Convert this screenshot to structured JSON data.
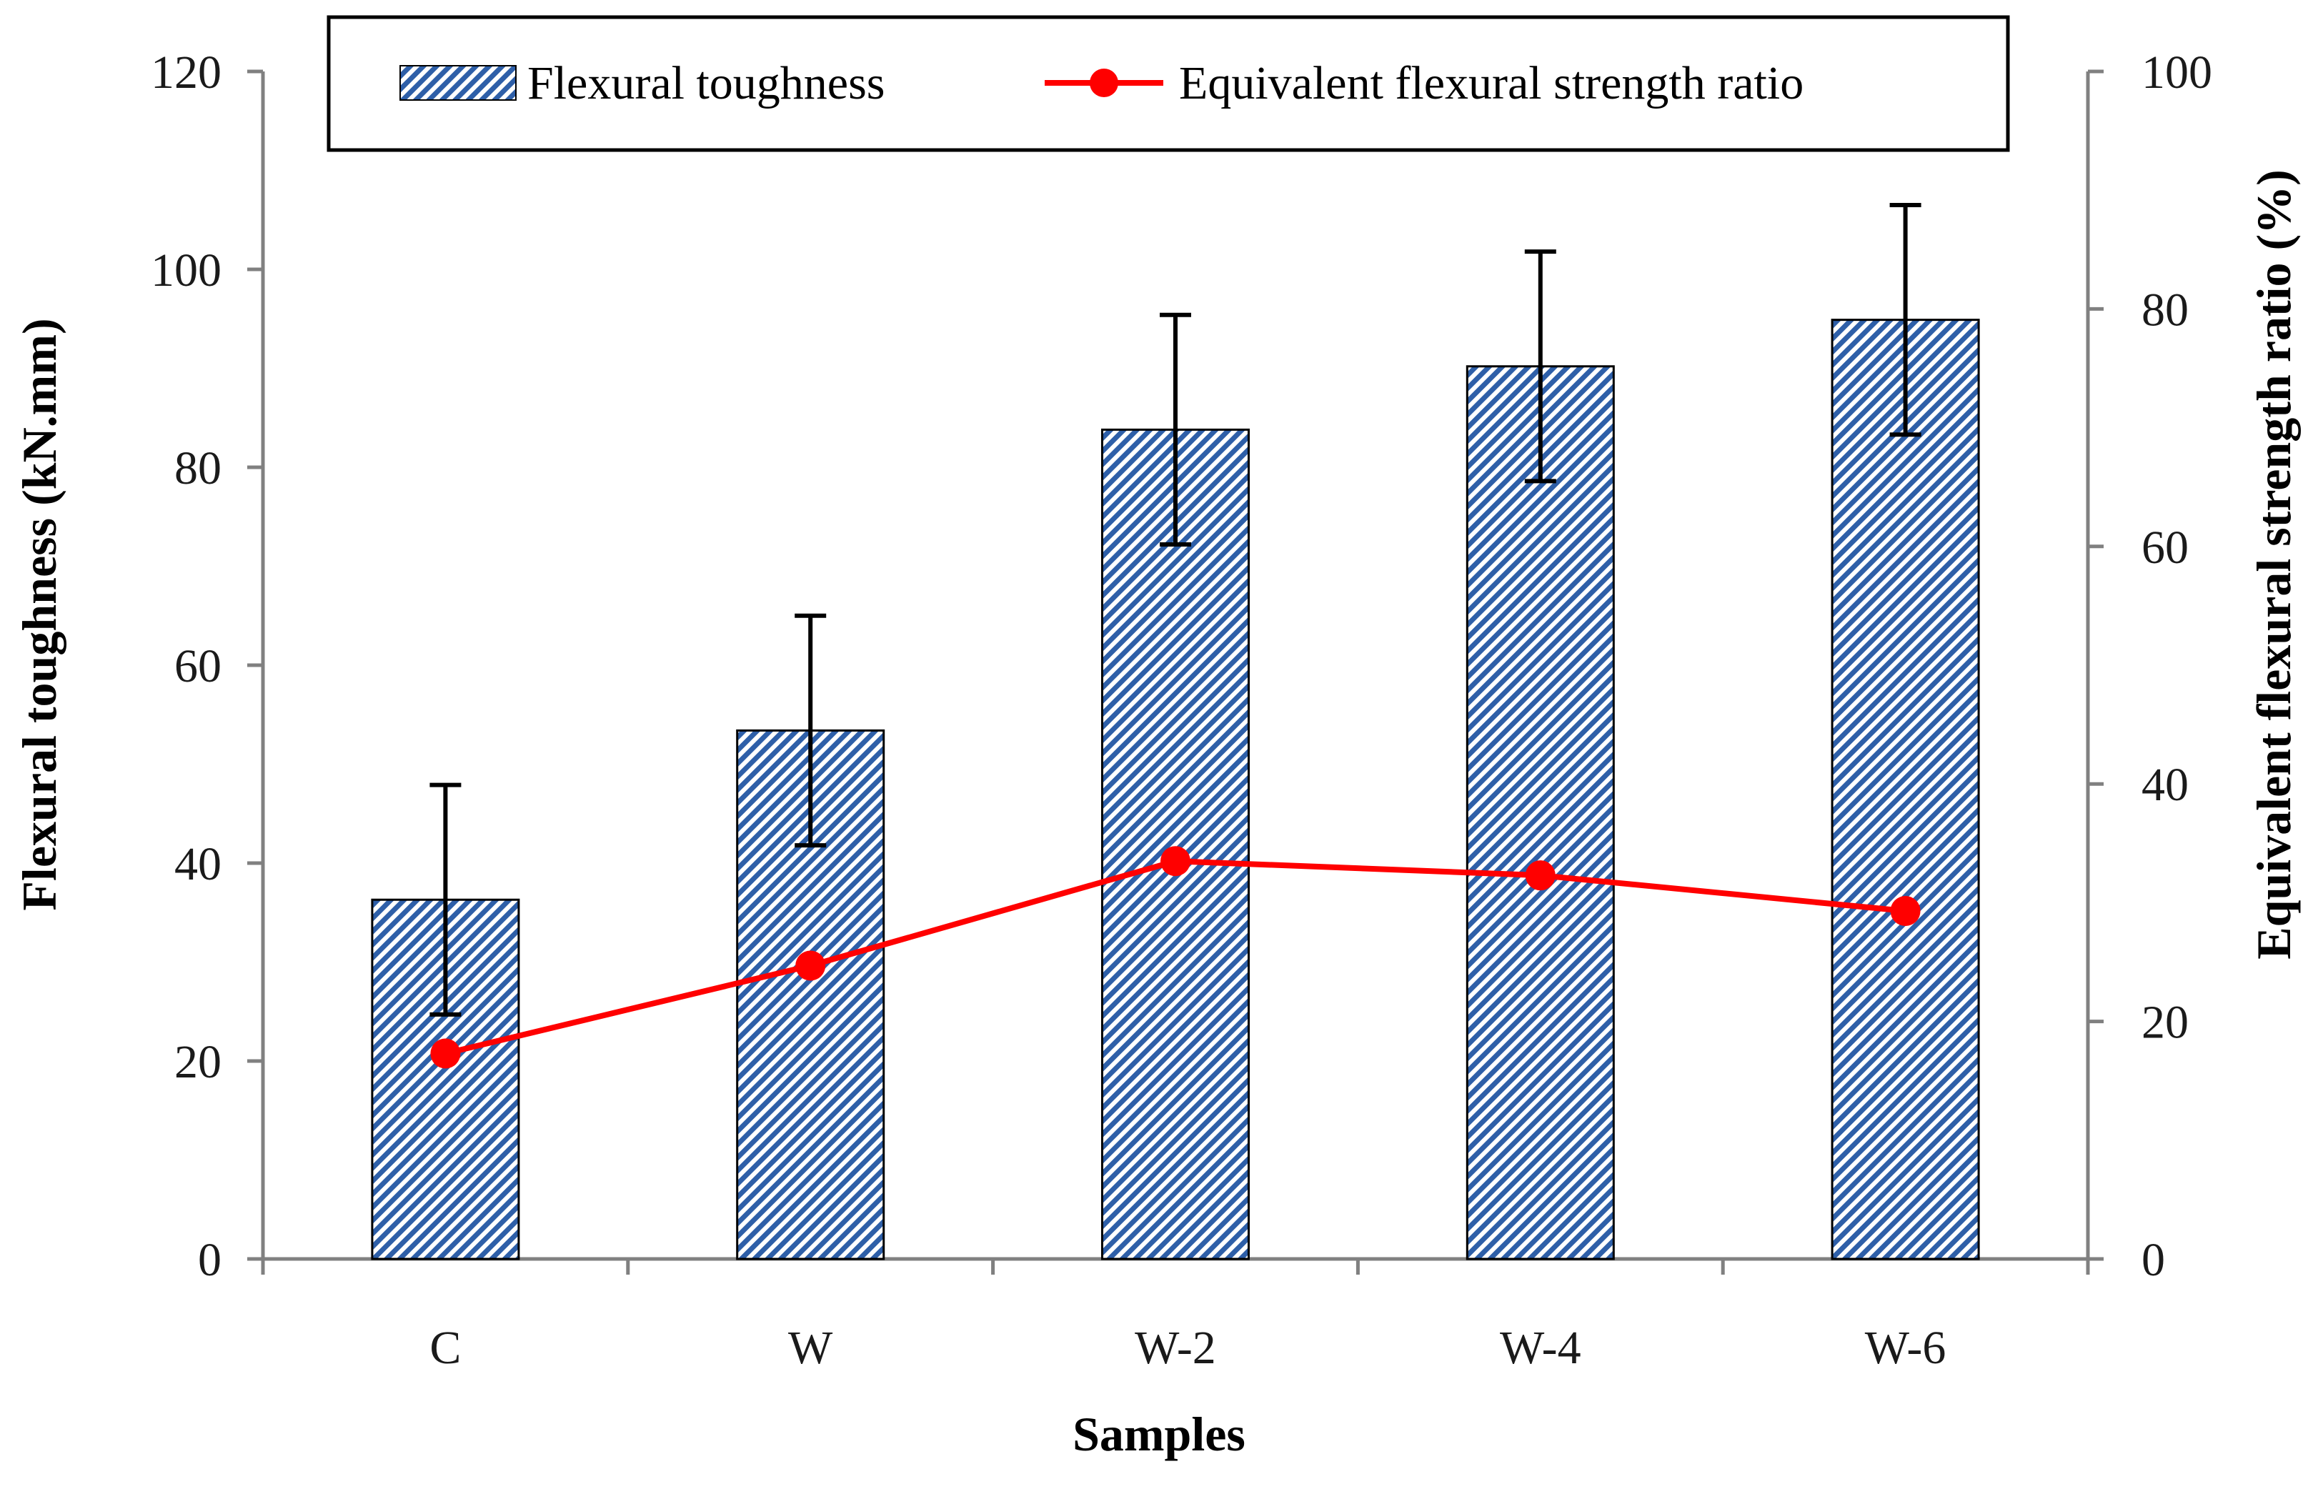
{
  "chart_data": {
    "type": "bar",
    "categories": [
      "C",
      "W",
      "W-2",
      "W-4",
      "W-6"
    ],
    "series": [
      {
        "name": "Flexural toughness",
        "kind": "bar",
        "axis": "left",
        "values": [
          36.3,
          53.4,
          83.8,
          90.2,
          94.9
        ],
        "errors": [
          11.6,
          11.6,
          11.6,
          11.6,
          11.6
        ],
        "color": "#2e5fa8"
      },
      {
        "name": "Equivalent flexural strength ratio",
        "kind": "line",
        "axis": "right",
        "values": [
          17.3,
          24.7,
          33.5,
          32.3,
          29.3
        ],
        "color": "#ff0000"
      }
    ],
    "xlabel": "Samples",
    "ylabel": "Flexural toughness  (kN.mm)",
    "y2label": "Equivalent flexural strength ratio (%)",
    "ylim": [
      0,
      120
    ],
    "y2lim": [
      0,
      100
    ],
    "yticks": [
      "0",
      "20",
      "40",
      "60",
      "80",
      "100",
      "120"
    ],
    "y2ticks": [
      "0",
      "20",
      "40",
      "60",
      "80",
      "100"
    ],
    "legend_position": "top"
  }
}
